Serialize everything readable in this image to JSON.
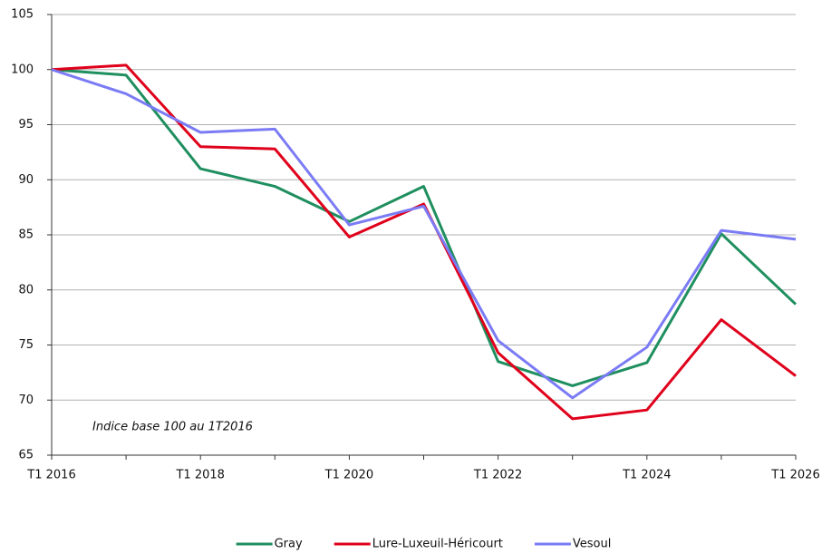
{
  "chart_data": {
    "type": "line",
    "annotation": "Indice base 100 au 1T2016",
    "categories": [
      "T1 2016",
      null,
      "T1 2018",
      null,
      "T1 2020",
      null,
      "T1 2022",
      null,
      "T1 2024",
      null,
      "T1 2026"
    ],
    "series": [
      {
        "name": "Gray",
        "color": "#1f8f5f",
        "values": [
          100,
          99.5,
          91,
          89.4,
          86.2,
          89.4,
          73.5,
          71.3,
          73.4,
          85.1,
          78.7
        ]
      },
      {
        "name": "Lure-Luxeuil-Héricourt",
        "color": "#e0001b",
        "values": [
          100,
          100.4,
          93,
          92.8,
          84.8,
          87.8,
          74.3,
          68.3,
          69.1,
          77.3,
          72.2
        ]
      },
      {
        "name": "Vesoul",
        "color": "#7b7bf5",
        "values": [
          100,
          97.8,
          94.3,
          94.6,
          85.9,
          87.6,
          75.4,
          70.2,
          74.8,
          85.4,
          84.6
        ]
      }
    ],
    "ylim": [
      65,
      105
    ],
    "yticks": [
      65,
      70,
      75,
      80,
      85,
      90,
      95,
      100,
      105
    ],
    "grid": true
  }
}
